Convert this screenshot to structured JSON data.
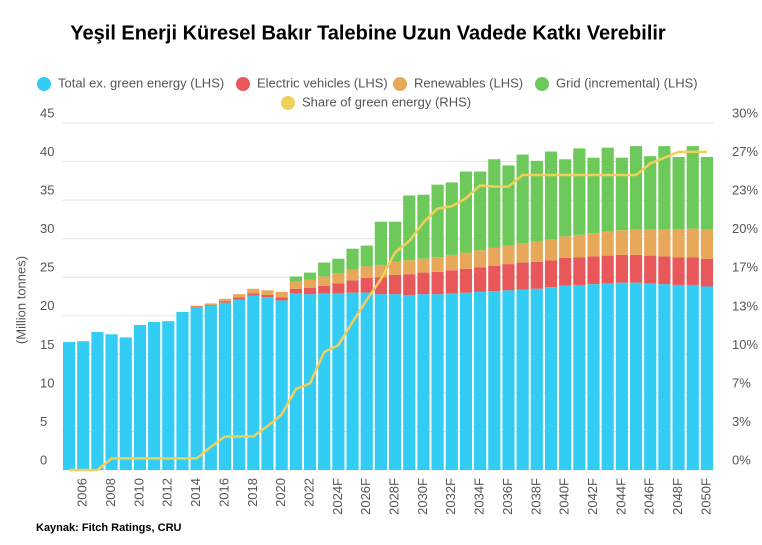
{
  "chart_data": {
    "type": "stacked-bar-line",
    "title": "Yeşil Enerji Küresel Bakır Talebine Uzun Vadede Katkı Verebilir",
    "ylabel": "(Million tonnes)",
    "source": "Kaynak: Fitch Ratings, CRU",
    "legend": "top",
    "grid": true,
    "categories": [
      null,
      "2006",
      null,
      "2008",
      null,
      "2010",
      null,
      "2012",
      null,
      "2014",
      null,
      "2016",
      null,
      "2018",
      null,
      "2020",
      null,
      "2022",
      null,
      "2024F",
      null,
      "2026F",
      null,
      "2028F",
      null,
      "2030F",
      null,
      "2032F",
      null,
      "2034F",
      null,
      "2036F",
      null,
      "2038F",
      null,
      "2040F",
      null,
      "2042F",
      null,
      "2044F",
      null,
      "2046F",
      null,
      "2048F",
      null,
      "2050F"
    ],
    "ylim": [
      0,
      45
    ],
    "yticks": [
      0,
      5,
      10,
      15,
      20,
      25,
      30,
      35,
      40,
      45
    ],
    "y2lim": [
      0,
      30
    ],
    "y2ticks": [
      {
        "value": 0,
        "label": "0%"
      },
      {
        "value": 3.33,
        "label": "3%"
      },
      {
        "value": 6.67,
        "label": "7%"
      },
      {
        "value": 10,
        "label": "10%"
      },
      {
        "value": 13.33,
        "label": "13%"
      },
      {
        "value": 16.67,
        "label": "17%"
      },
      {
        "value": 20,
        "label": "20%"
      },
      {
        "value": 23.33,
        "label": "23%"
      },
      {
        "value": 26.67,
        "label": "27%"
      },
      {
        "value": 30,
        "label": "30%"
      }
    ],
    "series": [
      {
        "name": "Total ex. green energy (LHS)",
        "color": "#33ccf4",
        "values": [
          16.6,
          16.7,
          17.9,
          17.6,
          17.2,
          18.8,
          19.2,
          19.3,
          20.5,
          21.1,
          21.3,
          21.7,
          22.1,
          22.6,
          22.4,
          22.0,
          22.9,
          22.8,
          22.9,
          22.9,
          23.0,
          23.0,
          22.8,
          22.8,
          22.7,
          22.8,
          22.8,
          22.9,
          23.0,
          23.1,
          23.2,
          23.3,
          23.4,
          23.5,
          23.7,
          23.9,
          24.0,
          24.1,
          24.2,
          24.3,
          24.3,
          24.2,
          24.1,
          24.0,
          24.0,
          23.8
        ]
      },
      {
        "name": "Electric vehicles (LHS)",
        "color": "#e8575a",
        "values": [
          0,
          0,
          0,
          0,
          0,
          0,
          0,
          0,
          0,
          0.1,
          0.1,
          0.2,
          0.3,
          0.3,
          0.3,
          0.4,
          0.6,
          0.8,
          1.0,
          1.3,
          1.6,
          1.9,
          2.2,
          2.5,
          2.7,
          2.8,
          2.9,
          3.0,
          3.1,
          3.2,
          3.3,
          3.4,
          3.5,
          3.5,
          3.5,
          3.6,
          3.6,
          3.6,
          3.6,
          3.6,
          3.6,
          3.6,
          3.6,
          3.6,
          3.6,
          3.6
        ]
      },
      {
        "name": "Renewables (LHS)",
        "color": "#e8a85a",
        "values": [
          0,
          0,
          0,
          0,
          0,
          0,
          0,
          0,
          0,
          0.1,
          0.2,
          0.3,
          0.4,
          0.6,
          0.6,
          0.7,
          0.9,
          1.1,
          1.2,
          1.3,
          1.4,
          1.5,
          1.6,
          1.7,
          1.8,
          1.8,
          1.9,
          2.0,
          2.1,
          2.2,
          2.3,
          2.4,
          2.5,
          2.6,
          2.7,
          2.8,
          2.9,
          3.0,
          3.1,
          3.2,
          3.3,
          3.4,
          3.5,
          3.6,
          3.7,
          3.8
        ]
      },
      {
        "name": "Grid (incremental) (LHS)",
        "color": "#6cc95a",
        "values": [
          0,
          0,
          0,
          0,
          0,
          0,
          0,
          0,
          0,
          0,
          0,
          0,
          0,
          0,
          0,
          0,
          0.7,
          0.9,
          1.8,
          1.9,
          2.7,
          2.7,
          5.6,
          5.2,
          8.4,
          8.3,
          9.4,
          9.4,
          10.5,
          10.2,
          11.5,
          10.4,
          11.5,
          10.5,
          11.4,
          10.0,
          11.2,
          9.8,
          10.9,
          9.4,
          10.8,
          9.5,
          10.8,
          9.4,
          10.7,
          9.4
        ]
      },
      {
        "name": "Share of green energy (RHS)",
        "color": "#f0cf5a",
        "axis": "y2",
        "values": [
          0,
          0,
          0,
          1,
          1,
          1,
          1,
          1,
          1,
          1,
          2,
          2.9,
          2.9,
          2.9,
          3.8,
          4.8,
          7,
          7.5,
          10.2,
          10.8,
          12.8,
          14.7,
          16.5,
          18.8,
          19.8,
          21.4,
          22.6,
          22.8,
          23.5,
          24.6,
          24.5,
          24.5,
          25.5,
          25.5,
          25.5,
          25.5,
          25.5,
          25.5,
          25.5,
          25.5,
          25.5,
          26.5,
          27,
          27.5,
          27.5,
          27.5
        ]
      }
    ]
  }
}
